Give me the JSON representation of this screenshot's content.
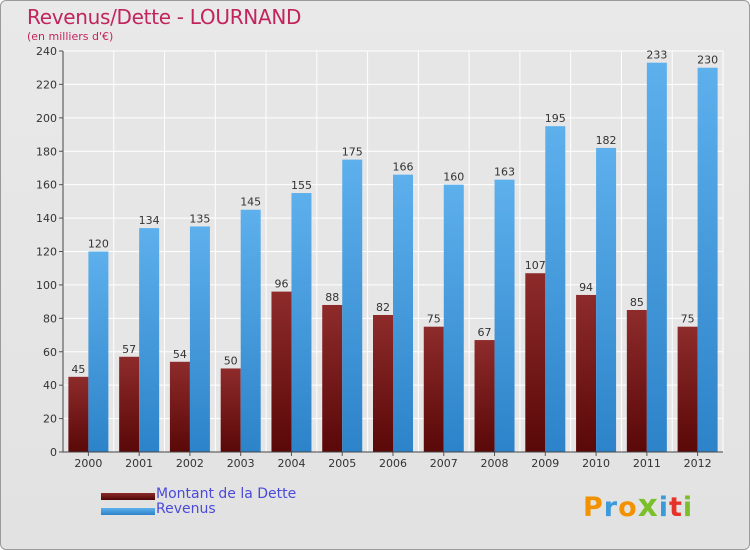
{
  "chart_data": {
    "type": "bar",
    "title": "Revenus/Dette - LOURNAND",
    "subtitle": "(en milliers d'€)",
    "categories": [
      "2000",
      "2001",
      "2002",
      "2003",
      "2004",
      "2005",
      "2006",
      "2007",
      "2008",
      "2009",
      "2010",
      "2011",
      "2012"
    ],
    "series": [
      {
        "name": "Montant de la Dette",
        "color": "#7a1c1c",
        "values": [
          45,
          57,
          54,
          50,
          96,
          88,
          82,
          75,
          67,
          107,
          94,
          85,
          75
        ]
      },
      {
        "name": "Revenus",
        "color": "#4aa0e4",
        "values": [
          120,
          134,
          135,
          145,
          155,
          175,
          166,
          160,
          163,
          195,
          182,
          233,
          230
        ]
      }
    ],
    "ylim": [
      0,
      240
    ],
    "yticks": [
      0,
      20,
      40,
      60,
      80,
      100,
      120,
      140,
      160,
      180,
      200,
      220,
      240
    ],
    "xlabel": "",
    "ylabel": "",
    "grid": true,
    "legend": "bottom-left"
  },
  "logo": {
    "letters": [
      "P",
      "r",
      "o",
      "x",
      "i",
      "t",
      "i"
    ],
    "colors": [
      "#f29200",
      "#3b9ad9",
      "#f29200",
      "#7bbf2a",
      "#3b9ad9",
      "#e6332a",
      "#7bbf2a"
    ]
  }
}
